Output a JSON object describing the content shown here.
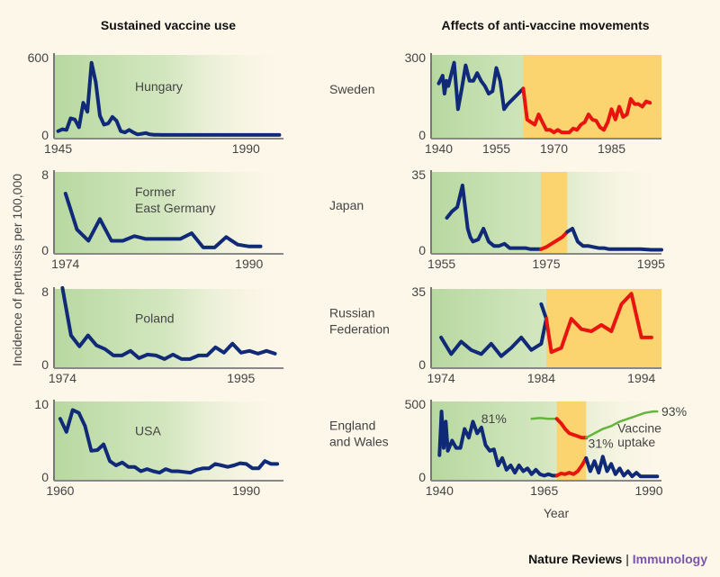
{
  "colors": {
    "background": "#fdf7ea",
    "panel_green": "#b7d8a0",
    "highlight": "#fbd36f",
    "pre_line": "#102a78",
    "during_line": "#e8140f",
    "uptake_line": "#64b53b",
    "footer_brand": "#7a55a8"
  },
  "footer": {
    "left": "Nature Reviews",
    "sep": "|",
    "right": "Immunology"
  },
  "chart_data": [
    {
      "type": "line",
      "column": "left",
      "column_title": "Sustained vaccine use",
      "ylabel": "Incidence of pertussis per 100,000",
      "xlabel": "Year",
      "title": "Hungary",
      "ylim": [
        0,
        600
      ],
      "yticks": [
        "0",
        "600"
      ],
      "xlim": [
        1944,
        1999
      ],
      "xticks": [
        [
          "1945",
          1945
        ],
        [
          "1990",
          1990
        ]
      ],
      "series": [
        {
          "name": "incidence",
          "style": "pre",
          "x": [
            1945,
            1946,
            1947,
            1948,
            1949,
            1950,
            1951,
            1952,
            1953,
            1954,
            1955,
            1956,
            1957,
            1958,
            1959,
            1960,
            1961,
            1962,
            1963,
            1964,
            1965,
            1966,
            1967,
            1968,
            1969,
            1970,
            1975,
            1980,
            1985,
            1990,
            1995,
            1998
          ],
          "y": [
            30,
            45,
            40,
            130,
            120,
            60,
            250,
            180,
            560,
            410,
            150,
            80,
            90,
            140,
            110,
            30,
            20,
            40,
            20,
            5,
            10,
            15,
            5,
            2,
            2,
            1,
            1,
            1,
            1,
            1,
            1,
            1
          ]
        }
      ]
    },
    {
      "type": "line",
      "column": "left",
      "title_lines": [
        "Former",
        "East Germany"
      ],
      "ylim": [
        0,
        8
      ],
      "yticks": [
        "0",
        "8"
      ],
      "xlim": [
        1973,
        1993
      ],
      "xticks": [
        [
          "1974",
          1974
        ],
        [
          "1990",
          1990
        ]
      ],
      "series": [
        {
          "name": "incidence",
          "style": "pre",
          "x": [
            1974,
            1975,
            1976,
            1977,
            1978,
            1979,
            1980,
            1981,
            1982,
            1983,
            1984,
            1985,
            1986,
            1987,
            1988,
            1989,
            1990,
            1991
          ],
          "y": [
            6,
            2.2,
            1,
            3.3,
            1,
            1,
            1.5,
            1.2,
            1.2,
            1.2,
            1.2,
            1.8,
            0.3,
            0.3,
            1.4,
            0.6,
            0.4,
            0.4
          ]
        }
      ]
    },
    {
      "type": "line",
      "column": "left",
      "title": "Poland",
      "ylim": [
        0,
        8
      ],
      "yticks": [
        "0",
        "8"
      ],
      "xlim": [
        1973,
        2000
      ],
      "xticks": [
        [
          "1974",
          1974
        ],
        [
          "1995",
          1995
        ]
      ],
      "series": [
        {
          "name": "incidence",
          "style": "pre",
          "x": [
            1974,
            1975,
            1976,
            1977,
            1978,
            1979,
            1980,
            1981,
            1982,
            1983,
            1984,
            1985,
            1986,
            1987,
            1988,
            1989,
            1990,
            1991,
            1992,
            1993,
            1994,
            1995,
            1996,
            1997,
            1998,
            1999
          ],
          "y": [
            8.4,
            3.2,
            2,
            3.2,
            2.1,
            1.7,
            1,
            1,
            1.5,
            0.7,
            1.1,
            1,
            0.6,
            1.1,
            0.6,
            0.6,
            1,
            1,
            1.9,
            1.3,
            2.3,
            1.3,
            1.5,
            1.2,
            1.5,
            1.2
          ]
        }
      ]
    },
    {
      "type": "line",
      "column": "left",
      "title": "USA",
      "ylim": [
        0,
        10
      ],
      "yticks": [
        "0",
        "10"
      ],
      "xlim": [
        1959,
        1996
      ],
      "xticks": [
        [
          "1960",
          1960
        ],
        [
          "1990",
          1990
        ]
      ],
      "series": [
        {
          "name": "incidence",
          "style": "pre",
          "x": [
            1960,
            1961,
            1962,
            1963,
            1964,
            1965,
            1966,
            1967,
            1968,
            1969,
            1970,
            1971,
            1972,
            1973,
            1974,
            1975,
            1976,
            1977,
            1978,
            1979,
            1980,
            1981,
            1982,
            1983,
            1984,
            1985,
            1986,
            1987,
            1988,
            1989,
            1990,
            1991,
            1992,
            1993,
            1994,
            1995
          ],
          "y": [
            8,
            6.2,
            9.2,
            8.8,
            7,
            3.6,
            3.7,
            4.5,
            2.2,
            1.6,
            2,
            1.4,
            1.4,
            0.8,
            1.1,
            0.8,
            0.6,
            1.1,
            0.8,
            0.8,
            0.7,
            0.6,
            1,
            1.2,
            1.2,
            1.8,
            1.6,
            1.4,
            1.6,
            1.9,
            1.8,
            1.2,
            1.2,
            2.2,
            1.8,
            1.8
          ]
        }
      ]
    },
    {
      "type": "line",
      "column": "right",
      "column_title": "Affects of anti-vaccine movements",
      "xlabel": "Year",
      "title": "Sweden",
      "ylim": [
        0,
        300
      ],
      "yticks": [
        "0",
        "300"
      ],
      "xlim": [
        1938,
        1998
      ],
      "xticks": [
        [
          "1940",
          1940
        ],
        [
          "1955",
          1955
        ],
        [
          "1970",
          1970
        ],
        [
          "1985",
          1985
        ]
      ],
      "highlight": [
        1962,
        1998
      ],
      "series": [
        {
          "name": "before",
          "style": "pre",
          "x": [
            1940,
            1941,
            1941.5,
            1942,
            1942.5,
            1943,
            1944,
            1945,
            1946,
            1947,
            1948,
            1949,
            1950,
            1951,
            1952,
            1953,
            1954,
            1955,
            1956,
            1957,
            1958,
            1960,
            1962
          ],
          "y": [
            200,
            230,
            160,
            210,
            190,
            220,
            280,
            100,
            180,
            270,
            210,
            210,
            240,
            210,
            190,
            160,
            170,
            260,
            210,
            100,
            120,
            150,
            180
          ]
        },
        {
          "name": "during",
          "style": "during",
          "x": [
            1962,
            1963,
            1964,
            1965,
            1966,
            1967,
            1968,
            1969,
            1970,
            1971,
            1972,
            1973,
            1974,
            1975,
            1976,
            1977,
            1978,
            1979,
            1980,
            1981,
            1982,
            1983,
            1984,
            1985,
            1986,
            1987,
            1988,
            1989,
            1990,
            1991,
            1992,
            1993,
            1994,
            1995
          ],
          "y": [
            180,
            60,
            50,
            40,
            80,
            50,
            20,
            20,
            10,
            20,
            10,
            10,
            10,
            25,
            20,
            40,
            50,
            80,
            60,
            55,
            30,
            20,
            50,
            100,
            60,
            110,
            70,
            80,
            140,
            120,
            120,
            110,
            130,
            125
          ]
        }
      ]
    },
    {
      "type": "line",
      "column": "right",
      "title": "Japan",
      "ylim": [
        0,
        35
      ],
      "yticks": [
        "0",
        "35"
      ],
      "xlim": [
        1953,
        1997
      ],
      "xticks": [
        [
          "1955",
          1955
        ],
        [
          "1975",
          1975
        ],
        [
          "1995",
          1995
        ]
      ],
      "highlight": [
        1974,
        1979
      ],
      "series": [
        {
          "name": "before",
          "style": "pre",
          "x": [
            1956,
            1957,
            1958,
            1959,
            1960,
            1960.5,
            1961,
            1962,
            1963,
            1964,
            1965,
            1966,
            1967,
            1968,
            1969,
            1970,
            1971,
            1972,
            1973,
            1974
          ],
          "y": [
            15,
            18,
            20,
            30,
            10,
            6,
            4,
            5,
            10,
            4,
            2,
            2,
            3,
            1,
            1,
            1,
            1,
            0.5,
            0.5,
            0.5
          ]
        },
        {
          "name": "during",
          "style": "during",
          "x": [
            1974,
            1975,
            1976,
            1977,
            1978,
            1979
          ],
          "y": [
            0.5,
            1.5,
            3,
            4.5,
            6,
            8.5
          ]
        },
        {
          "name": "after",
          "style": "pre",
          "x": [
            1979,
            1980,
            1981,
            1982,
            1983,
            1984,
            1985,
            1986,
            1987,
            1990,
            1993,
            1995,
            1997
          ],
          "y": [
            8.5,
            10,
            4,
            2,
            2,
            1.5,
            1,
            1,
            0.5,
            0.5,
            0.5,
            0.2,
            0.2
          ]
        }
      ]
    },
    {
      "type": "line",
      "column": "right",
      "title_lines": [
        "Russian",
        "Federation"
      ],
      "ylim": [
        0,
        35
      ],
      "yticks": [
        "0",
        "35"
      ],
      "xlim": [
        1973,
        1996
      ],
      "xticks": [
        [
          "1974",
          1974
        ],
        [
          "1984",
          1984
        ],
        [
          "1994",
          1994
        ]
      ],
      "highlight": [
        1984.5,
        1996
      ],
      "series": [
        {
          "name": "before",
          "style": "pre",
          "x": [
            1974,
            1975,
            1976,
            1977,
            1978,
            1979,
            1980,
            1981,
            1982,
            1983,
            1984,
            1984.5
          ],
          "y": [
            13,
            5,
            11,
            7,
            5,
            10,
            4,
            8,
            13,
            7,
            10,
            22
          ]
        },
        {
          "name": "peak",
          "style": "pre",
          "x": [
            1984,
            1984.5
          ],
          "y": [
            29,
            22
          ]
        },
        {
          "name": "during",
          "style": "during",
          "x": [
            1984.5,
            1985,
            1986,
            1987,
            1988,
            1989,
            1990,
            1991,
            1992,
            1993,
            1994,
            1995
          ],
          "y": [
            22,
            6,
            8,
            22,
            17,
            16,
            19,
            16,
            29,
            34,
            13,
            13
          ]
        }
      ]
    },
    {
      "type": "line",
      "column": "right",
      "title_lines": [
        "England",
        "and Wales"
      ],
      "xlabel": "Year",
      "ylim": [
        0,
        500
      ],
      "yticks": [
        "0",
        "500"
      ],
      "xlim": [
        1938,
        1993
      ],
      "xticks": [
        [
          "1940",
          1940
        ],
        [
          "1965",
          1965
        ],
        [
          "1990",
          1990
        ]
      ],
      "highlight": [
        1968,
        1975
      ],
      "series": [
        {
          "name": "incidence before",
          "style": "pre",
          "x": [
            1940,
            1940.5,
            1941,
            1941.5,
            1942,
            1943,
            1944,
            1945,
            1946,
            1947,
            1948,
            1949,
            1950,
            1951,
            1952,
            1953,
            1954,
            1955,
            1956,
            1957,
            1958,
            1959,
            1960,
            1961,
            1962,
            1963,
            1964,
            1965,
            1966,
            1967,
            1968
          ],
          "y": [
            150,
            450,
            200,
            380,
            180,
            250,
            200,
            200,
            330,
            270,
            380,
            300,
            340,
            220,
            180,
            190,
            80,
            130,
            50,
            80,
            30,
            80,
            40,
            60,
            20,
            50,
            20,
            10,
            20,
            10,
            10
          ]
        },
        {
          "name": "incidence during",
          "style": "during",
          "x": [
            1968,
            1969,
            1970,
            1971,
            1972,
            1973,
            1974,
            1975
          ],
          "y": [
            10,
            25,
            20,
            30,
            20,
            40,
            80,
            130
          ]
        },
        {
          "name": "incidence after",
          "style": "pre",
          "x": [
            1975,
            1976,
            1977,
            1978,
            1979,
            1980,
            1981,
            1982,
            1983,
            1984,
            1985,
            1986,
            1987,
            1988,
            1989,
            1990,
            1992
          ],
          "y": [
            130,
            40,
            110,
            30,
            140,
            40,
            90,
            20,
            60,
            10,
            40,
            5,
            30,
            5,
            5,
            5,
            5
          ]
        },
        {
          "name": "vaccine uptake before",
          "style": "uptake",
          "x": [
            1962,
            1964,
            1966,
            1968
          ],
          "y": [
            400,
            405,
            400,
            400
          ]
        },
        {
          "name": "vaccine uptake during",
          "style": "during",
          "x": [
            1968,
            1969,
            1970,
            1971,
            1972,
            1973,
            1974,
            1975
          ],
          "y": [
            400,
            370,
            330,
            300,
            290,
            280,
            270,
            270
          ]
        },
        {
          "name": "vaccine uptake after",
          "style": "uptake",
          "x": [
            1975,
            1977,
            1979,
            1981,
            1983,
            1985,
            1987,
            1989,
            1991,
            1992
          ],
          "y": [
            270,
            300,
            330,
            350,
            380,
            400,
            420,
            440,
            450,
            450
          ]
        }
      ],
      "annotations": [
        {
          "text": "81%",
          "x": 1956,
          "y": 400
        },
        {
          "text": "31%",
          "x": 1975.5,
          "y": 230
        },
        {
          "text": "93%",
          "x": 1993,
          "y": 450
        },
        {
          "text": "Vaccine",
          "x": 1982.5,
          "y": 335
        },
        {
          "text": "uptake",
          "x": 1982.5,
          "y": 240
        }
      ]
    }
  ]
}
